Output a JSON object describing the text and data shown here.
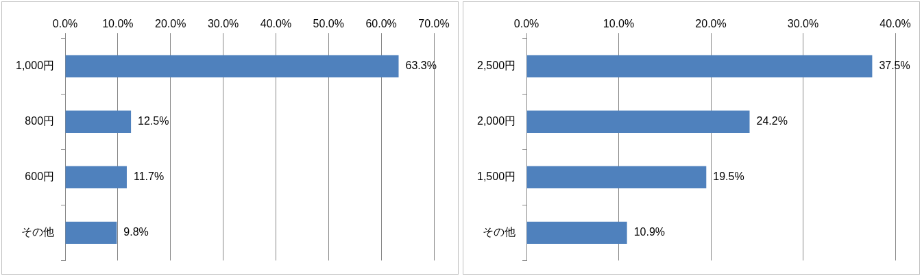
{
  "chart_data": [
    {
      "type": "bar",
      "orientation": "horizontal",
      "categories": [
        "1,000円",
        "800円",
        "600円",
        "その他"
      ],
      "values": [
        63.3,
        12.5,
        11.7,
        9.8
      ],
      "value_labels": [
        "63.3%",
        "12.5%",
        "11.7%",
        "9.8%"
      ],
      "color": "#4f81bd",
      "xlim": [
        0,
        70
      ],
      "xticks": [
        {
          "value": 0,
          "label": "0.0%"
        },
        {
          "value": 10,
          "label": "10.0%"
        },
        {
          "value": 20,
          "label": "20.0%"
        },
        {
          "value": 30,
          "label": "30.0%"
        },
        {
          "value": 40,
          "label": "40.0%"
        },
        {
          "value": 50,
          "label": "50.0%"
        },
        {
          "value": 60,
          "label": "60.0%"
        },
        {
          "value": 70,
          "label": "70.0%"
        }
      ],
      "grid": "x",
      "legend": false
    },
    {
      "type": "bar",
      "orientation": "horizontal",
      "categories": [
        "2,500円",
        "2,000円",
        "1,500円",
        "その他"
      ],
      "values": [
        37.5,
        24.2,
        19.5,
        10.9
      ],
      "value_labels": [
        "37.5%",
        "24.2%",
        "19.5%",
        "10.9%"
      ],
      "color": "#4f81bd",
      "xlim": [
        0,
        40
      ],
      "xticks": [
        {
          "value": 0,
          "label": "0.0%"
        },
        {
          "value": 10,
          "label": "10.0%"
        },
        {
          "value": 20,
          "label": "20.0%"
        },
        {
          "value": 30,
          "label": "30.0%"
        },
        {
          "value": 40,
          "label": "40.0%"
        }
      ],
      "grid": "x",
      "legend": false
    }
  ]
}
